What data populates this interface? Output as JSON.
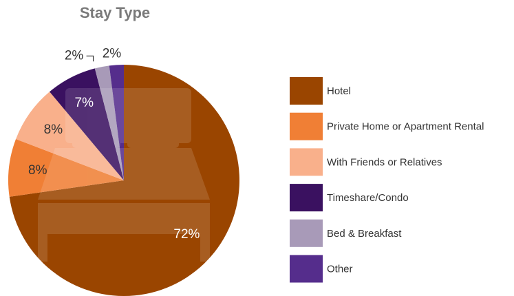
{
  "chart_data": {
    "type": "pie",
    "title": "Stay Type",
    "categories": [
      "Hotel",
      "Private Home or Apartment Rental",
      "With Friends or Relatives",
      "Timeshare/Condo",
      "Bed & Breakfast",
      "Other"
    ],
    "values": [
      72,
      8,
      8,
      7,
      2,
      2
    ],
    "value_labels": [
      "72%",
      "8%",
      "8%",
      "7%",
      "2%",
      "2%"
    ],
    "colors": [
      "#9a4500",
      "#f07f35",
      "#f9b08b",
      "#3a1160",
      "#a89ab8",
      "#552d8c"
    ]
  }
}
